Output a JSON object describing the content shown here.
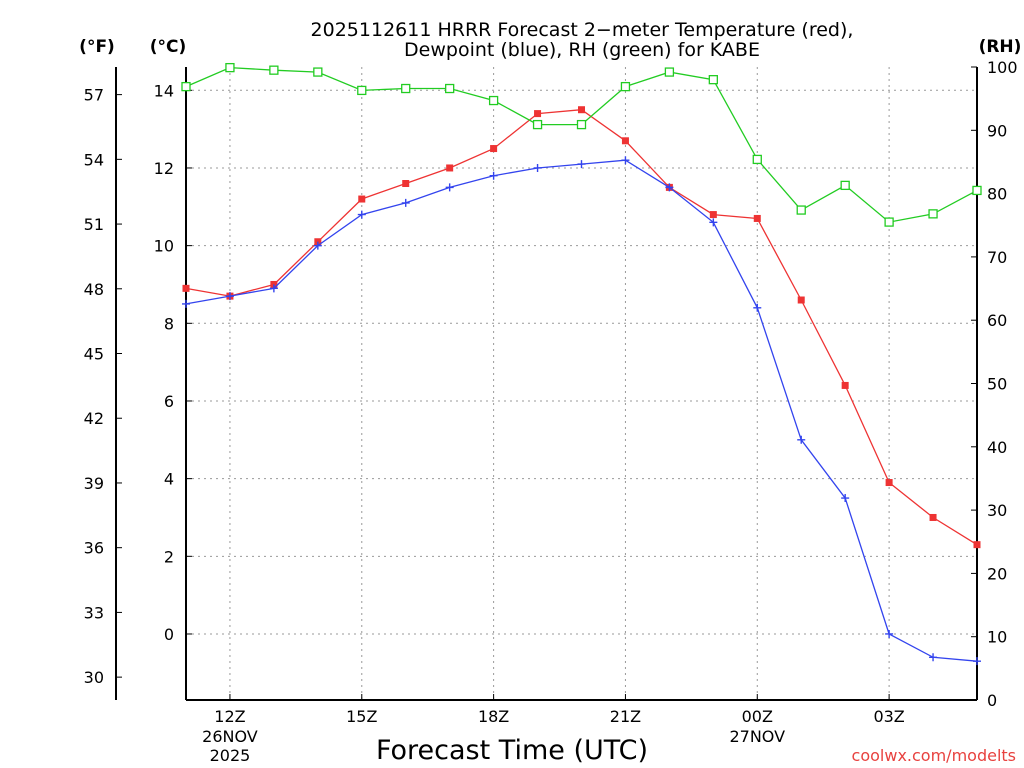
{
  "chart_data": {
    "type": "line",
    "title": {
      "line1": "2025112611 HRRR Forecast 2−meter Temperature (red),",
      "line2": "Dewpoint (blue), RH (green) for KABE"
    },
    "xlabel": "Forecast Time (UTC)",
    "credit": "coolwx.com/modelts",
    "x": [
      11,
      12,
      13,
      14,
      15,
      16,
      17,
      18,
      19,
      20,
      21,
      22,
      23,
      24,
      25,
      26,
      27,
      28,
      29
    ],
    "xlim": [
      11,
      29
    ],
    "x_ticks": [
      {
        "x": 12,
        "label": "12Z",
        "date": "26NOV",
        "year": "2025"
      },
      {
        "x": 15,
        "label": "15Z",
        "date": "",
        "year": ""
      },
      {
        "x": 18,
        "label": "18Z",
        "date": "",
        "year": ""
      },
      {
        "x": 21,
        "label": "21Z",
        "date": "",
        "year": ""
      },
      {
        "x": 24,
        "label": "00Z",
        "date": "27NOV",
        "year": ""
      },
      {
        "x": 27,
        "label": "03Z",
        "date": "",
        "year": ""
      }
    ],
    "left_axis": {
      "unit_label": "(°C)",
      "ylim": [
        -1.7,
        14.6
      ],
      "ticks": [
        0,
        2,
        4,
        6,
        8,
        10,
        12,
        14
      ]
    },
    "fahrenheit_axis": {
      "unit_label": "(°F)",
      "ticks": [
        30,
        33,
        36,
        39,
        42,
        45,
        48,
        51,
        54,
        57
      ]
    },
    "right_axis": {
      "unit_label": "(RH)",
      "ylim": [
        0,
        100
      ],
      "ticks": [
        0,
        10,
        20,
        30,
        40,
        50,
        60,
        70,
        80,
        90,
        100
      ]
    },
    "series": [
      {
        "name": "Temperature",
        "axis": "left",
        "color": "#ee3333",
        "marker": "filled-square",
        "values": [
          8.9,
          8.7,
          9.0,
          10.1,
          11.2,
          11.6,
          12.0,
          12.5,
          13.4,
          13.5,
          12.7,
          11.5,
          10.8,
          10.7,
          8.6,
          6.4,
          3.9,
          3.0,
          2.3
        ]
      },
      {
        "name": "Dewpoint",
        "axis": "left",
        "color": "#3344ee",
        "marker": "plus",
        "values": [
          8.5,
          8.7,
          8.9,
          10.0,
          10.8,
          11.1,
          11.5,
          11.8,
          12.0,
          12.1,
          12.2,
          11.5,
          10.6,
          8.4,
          5.0,
          3.5,
          0.0,
          -0.6,
          -0.7
        ]
      },
      {
        "name": "RH",
        "axis": "right",
        "color": "#22cc22",
        "marker": "open-square",
        "values": [
          96.9,
          99.9,
          99.5,
          99.2,
          96.3,
          96.6,
          96.6,
          94.7,
          90.9,
          90.9,
          96.9,
          99.2,
          98.0,
          85.4,
          77.4,
          81.3,
          75.5,
          76.8,
          80.5
        ]
      }
    ]
  }
}
